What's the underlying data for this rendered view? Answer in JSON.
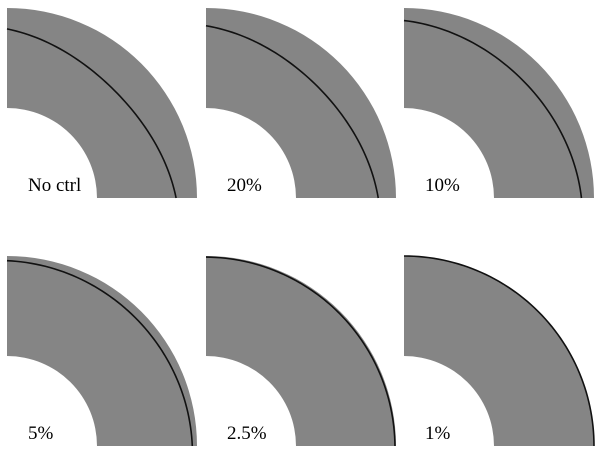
{
  "colors": {
    "background": "#ffffff",
    "region_fill": "#858585",
    "contour_stroke": "#111111"
  },
  "panels": [
    {
      "label": "No ctrl",
      "deviation": 0.2
    },
    {
      "label": "20%",
      "deviation": 0.17
    },
    {
      "label": "10%",
      "deviation": 0.12
    },
    {
      "label": "5%",
      "deviation": 0.045
    },
    {
      "label": "2.5%",
      "deviation": 0.01
    },
    {
      "label": "1%",
      "deviation": 0.0
    }
  ]
}
